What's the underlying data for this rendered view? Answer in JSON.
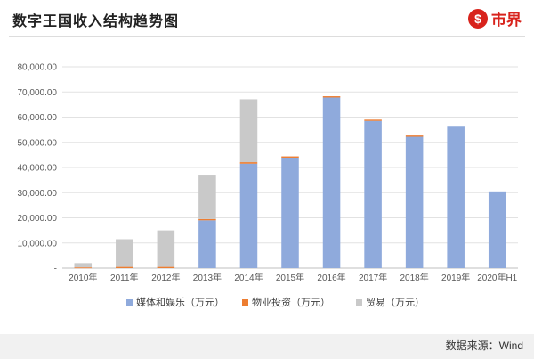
{
  "header": {
    "title": "数字王国收入结构趋势图",
    "brand_symbol": "$",
    "brand_name": "市界"
  },
  "footer": {
    "source": "数据来源：Wind"
  },
  "chart_data": {
    "type": "bar",
    "stacked": true,
    "title": "数字王国收入结构趋势图",
    "xlabel": "",
    "ylabel": "",
    "ylim": [
      0,
      80000
    ],
    "yticks": [
      0,
      10000,
      20000,
      30000,
      40000,
      50000,
      60000,
      70000,
      80000
    ],
    "ytick_labels": [
      "-",
      "10,000.00",
      "20,000.00",
      "30,000.00",
      "40,000.00",
      "50,000.00",
      "60,000.00",
      "70,000.00",
      "80,000.00"
    ],
    "grid": true,
    "legend_position": "bottom",
    "categories": [
      "2010年",
      "2011年",
      "2012年",
      "2013年",
      "2014年",
      "2015年",
      "2016年",
      "2017年",
      "2018年",
      "2019年",
      "2020年H1"
    ],
    "series": [
      {
        "name": "媒体和娱乐（万元）",
        "color": "#8faadc",
        "values": [
          0,
          0,
          0,
          19000,
          41500,
          43900,
          67800,
          58500,
          52200,
          56200,
          30500
        ]
      },
      {
        "name": "物业投资（万元）",
        "color": "#ed7d31",
        "values": [
          300,
          500,
          500,
          500,
          600,
          500,
          500,
          500,
          500,
          0,
          0
        ]
      },
      {
        "name": "贸易（万元）",
        "color": "#c9c9c9",
        "values": [
          1700,
          11000,
          14500,
          17300,
          25000,
          0,
          0,
          0,
          0,
          0,
          0
        ]
      }
    ]
  }
}
